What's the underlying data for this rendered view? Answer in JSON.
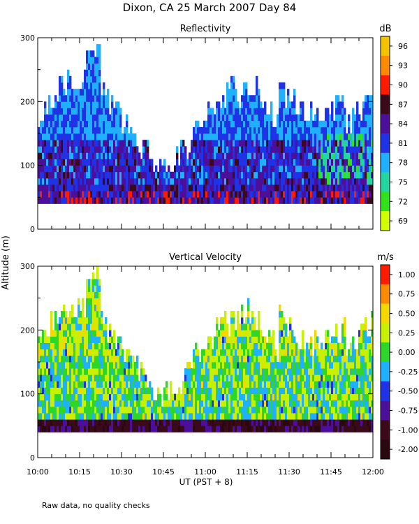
{
  "title": "Dixon, CA 25 March 2007  Day  84",
  "shared_ylabel": "Altitude (m)",
  "xlabel": "UT  (PST + 8)",
  "footnote": "Raw data, no quality checks",
  "chart_data": [
    {
      "type": "heatmap",
      "title": "Reflectivity",
      "colorbar_unit": "dB",
      "xlim_minutes": [
        0,
        120
      ],
      "ylim": [
        0,
        300
      ],
      "yticks": [
        0,
        100,
        200,
        300
      ],
      "colorbar_ticks": [
        "96",
        "93",
        "90",
        "87",
        "84",
        "81",
        "78",
        "75",
        "72",
        "69"
      ],
      "colors": [
        "#f5c400",
        "#ff8a00",
        "#ff1a00",
        "#3a0a1a",
        "#4b0f9a",
        "#1f32e6",
        "#1fb0ff",
        "#22d6a0",
        "#33e11a",
        "#d2ff00"
      ],
      "field": "reflectivity",
      "data_range_alt": [
        40,
        300
      ]
    },
    {
      "type": "heatmap",
      "title": "Vertical Velocity",
      "colorbar_unit": "m/s",
      "xlim_minutes": [
        0,
        120
      ],
      "ylim": [
        0,
        300
      ],
      "yticks": [
        0,
        100,
        200,
        300
      ],
      "xticks": [
        "10:00",
        "10:15",
        "10:30",
        "10:45",
        "11:00",
        "11:15",
        "11:30",
        "11:45",
        "12:00"
      ],
      "colorbar_ticks": [
        "1.00",
        "0.75",
        "0.50",
        "0.25",
        "0.00",
        "-0.25",
        "-0.50",
        "-0.75",
        "-1.00",
        "-2.00"
      ],
      "colors": [
        "#ff1a00",
        "#ff8a00",
        "#f5d800",
        "#c8f000",
        "#2fd62a",
        "#1fb0ff",
        "#1f32e6",
        "#4b0f9a",
        "#3a0a1a",
        "#2a0810"
      ],
      "field": "vertical_velocity",
      "data_range_alt": [
        40,
        300
      ]
    }
  ]
}
